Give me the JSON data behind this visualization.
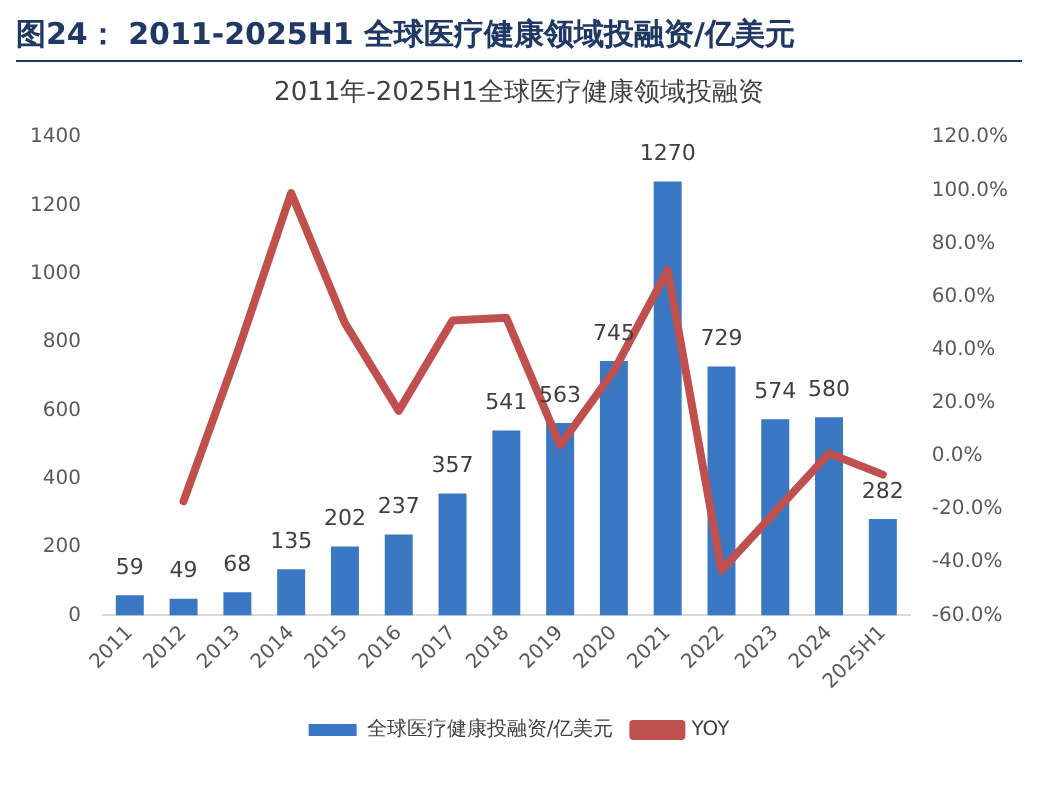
{
  "chart_data": {
    "type": "bar",
    "title": "图24：  2011-2025H1 全球医疗健康领域投融资/亿美元",
    "subtitle": "2011年-2025H1全球医疗健康领域投融资",
    "categories": [
      "2011",
      "2012",
      "2013",
      "2014",
      "2015",
      "2016",
      "2017",
      "2018",
      "2019",
      "2020",
      "2021",
      "2022",
      "2023",
      "2024",
      "2025H1"
    ],
    "series": [
      {
        "name": "全球医疗健康投融资/亿美元",
        "color": "#3a78c3",
        "values": [
          59,
          49,
          68,
          135,
          202,
          237,
          357,
          541,
          563,
          745,
          1270,
          729,
          574,
          580,
          282
        ],
        "value_labels": [
          "59",
          "49",
          "68",
          "135",
          "202",
          "237",
          "357",
          "541",
          "563",
          "745",
          "1270",
          "729",
          "574",
          "580",
          "282"
        ]
      },
      {
        "name": "YOY",
        "type": "line",
        "axis": "y2",
        "color": "#c0504d",
        "values": [
          null,
          -17,
          39,
          99,
          50,
          17,
          51,
          52,
          4,
          32,
          70,
          -43,
          -21,
          1,
          -7
        ]
      }
    ],
    "ylim": [
      0,
      1400
    ],
    "yticks": [
      0,
      200,
      400,
      600,
      800,
      1000,
      1200,
      1400
    ],
    "y2lim": [
      -60,
      120
    ],
    "y2ticks": [
      {
        "value": -60,
        "label": "-60.0%"
      },
      {
        "value": -40,
        "label": "-40.0%"
      },
      {
        "value": -20,
        "label": "-20.0%"
      },
      {
        "value": 0,
        "label": "0.0%"
      },
      {
        "value": 20,
        "label": "20.0%"
      },
      {
        "value": 40,
        "label": "40.0%"
      },
      {
        "value": 60,
        "label": "60.0%"
      },
      {
        "value": 80,
        "label": "80.0%"
      },
      {
        "value": 100,
        "label": "100.0%"
      },
      {
        "value": 120,
        "label": "120.0%"
      }
    ],
    "legend": "bottom",
    "marker": "none",
    "grid": false
  }
}
